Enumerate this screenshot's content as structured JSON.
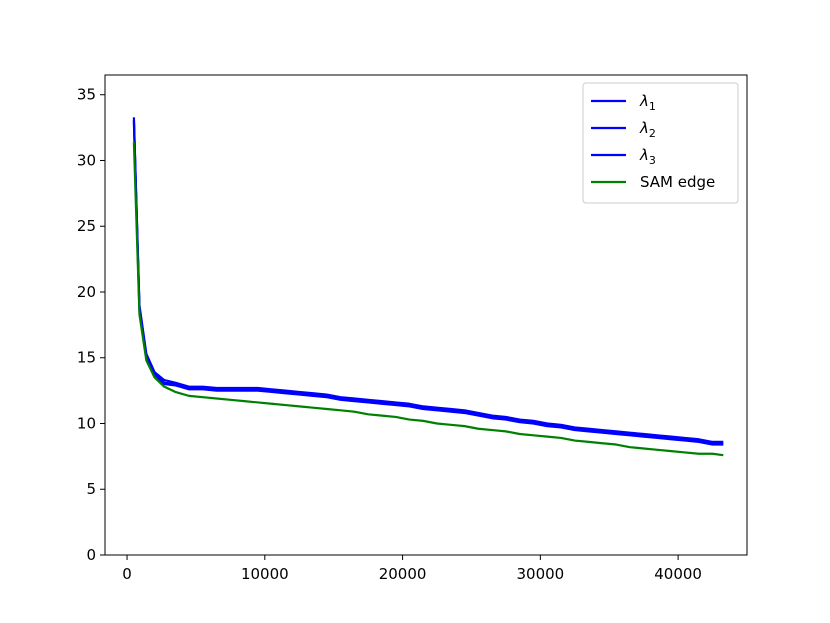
{
  "chart_data": {
    "type": "line",
    "title": "",
    "xlabel": "",
    "ylabel": "",
    "xlim": [
      -1600,
      45000
    ],
    "ylim": [
      0,
      36.5
    ],
    "x_ticks": [
      0,
      10000,
      20000,
      30000,
      40000
    ],
    "y_ticks": [
      0,
      5,
      10,
      15,
      20,
      25,
      30,
      35
    ],
    "grid": false,
    "legend_position": "top-right",
    "series": [
      {
        "name": "λ1",
        "legend_base": "λ",
        "legend_sub": "1",
        "color": "#0000ff",
        "x": [
          500,
          900,
          1400,
          2000,
          2700,
          3500,
          4500,
          5500,
          6500,
          7500,
          8500,
          9500,
          10500,
          11500,
          12500,
          13500,
          14500,
          15500,
          16500,
          17500,
          18500,
          19500,
          20500,
          21500,
          22500,
          23500,
          24500,
          25500,
          26500,
          27500,
          28500,
          29500,
          30500,
          31500,
          32500,
          33500,
          34500,
          35500,
          36500,
          37500,
          38500,
          39500,
          40500,
          41500,
          42500,
          43200
        ],
        "y": [
          33.2,
          19.0,
          15.3,
          13.9,
          13.3,
          13.1,
          12.8,
          12.8,
          12.7,
          12.7,
          12.7,
          12.7,
          12.6,
          12.5,
          12.4,
          12.3,
          12.2,
          12.0,
          11.9,
          11.8,
          11.7,
          11.6,
          11.5,
          11.3,
          11.2,
          11.1,
          11.0,
          10.8,
          10.6,
          10.5,
          10.3,
          10.2,
          10.0,
          9.9,
          9.7,
          9.6,
          9.5,
          9.4,
          9.3,
          9.2,
          9.1,
          9.0,
          8.9,
          8.8,
          8.6,
          8.6
        ]
      },
      {
        "name": "λ2",
        "legend_base": "λ",
        "legend_sub": "2",
        "color": "#0000ff",
        "x": [
          500,
          900,
          1400,
          2000,
          2700,
          3500,
          4500,
          5500,
          6500,
          7500,
          8500,
          9500,
          10500,
          11500,
          12500,
          13500,
          14500,
          15500,
          16500,
          17500,
          18500,
          19500,
          20500,
          21500,
          22500,
          23500,
          24500,
          25500,
          26500,
          27500,
          28500,
          29500,
          30500,
          31500,
          32500,
          33500,
          34500,
          35500,
          36500,
          37500,
          38500,
          39500,
          40500,
          41500,
          42500,
          43200
        ],
        "y": [
          33.0,
          18.8,
          15.1,
          13.8,
          13.1,
          13.0,
          12.7,
          12.7,
          12.6,
          12.6,
          12.6,
          12.6,
          12.5,
          12.4,
          12.3,
          12.2,
          12.1,
          11.9,
          11.8,
          11.7,
          11.6,
          11.5,
          11.4,
          11.2,
          11.1,
          11.0,
          10.9,
          10.7,
          10.5,
          10.4,
          10.2,
          10.1,
          9.9,
          9.8,
          9.6,
          9.5,
          9.4,
          9.3,
          9.2,
          9.1,
          9.0,
          8.9,
          8.8,
          8.7,
          8.5,
          8.5
        ]
      },
      {
        "name": "λ3",
        "legend_base": "λ",
        "legend_sub": "3",
        "color": "#0000ff",
        "x": [
          500,
          900,
          1400,
          2000,
          2700,
          3500,
          4500,
          5500,
          6500,
          7500,
          8500,
          9500,
          10500,
          11500,
          12500,
          13500,
          14500,
          15500,
          16500,
          17500,
          18500,
          19500,
          20500,
          21500,
          22500,
          23500,
          24500,
          25500,
          26500,
          27500,
          28500,
          29500,
          30500,
          31500,
          32500,
          33500,
          34500,
          35500,
          36500,
          37500,
          38500,
          39500,
          40500,
          41500,
          42500,
          43200
        ],
        "y": [
          32.8,
          18.6,
          15.0,
          13.7,
          13.0,
          12.9,
          12.6,
          12.6,
          12.5,
          12.5,
          12.5,
          12.5,
          12.4,
          12.3,
          12.2,
          12.1,
          12.0,
          11.8,
          11.7,
          11.6,
          11.5,
          11.4,
          11.3,
          11.1,
          11.0,
          10.9,
          10.8,
          10.6,
          10.4,
          10.3,
          10.1,
          10.0,
          9.8,
          9.7,
          9.5,
          9.4,
          9.3,
          9.2,
          9.1,
          9.0,
          8.9,
          8.8,
          8.7,
          8.6,
          8.4,
          8.4
        ]
      },
      {
        "name": "SAM edge",
        "legend_base": "SAM edge",
        "legend_sub": "",
        "color": "#008000",
        "x": [
          500,
          900,
          1400,
          2000,
          2700,
          3500,
          4500,
          5500,
          6500,
          7500,
          8500,
          9500,
          10500,
          11500,
          12500,
          13500,
          14500,
          15500,
          16500,
          17500,
          18500,
          19500,
          20500,
          21500,
          22500,
          23500,
          24500,
          25500,
          26500,
          27500,
          28500,
          29500,
          30500,
          31500,
          32500,
          33500,
          34500,
          35500,
          36500,
          37500,
          38500,
          39500,
          40500,
          41500,
          42500,
          43200
        ],
        "y": [
          31.3,
          18.3,
          14.8,
          13.5,
          12.8,
          12.4,
          12.1,
          12.0,
          11.9,
          11.8,
          11.7,
          11.6,
          11.5,
          11.4,
          11.3,
          11.2,
          11.1,
          11.0,
          10.9,
          10.7,
          10.6,
          10.5,
          10.3,
          10.2,
          10.0,
          9.9,
          9.8,
          9.6,
          9.5,
          9.4,
          9.2,
          9.1,
          9.0,
          8.9,
          8.7,
          8.6,
          8.5,
          8.4,
          8.2,
          8.1,
          8.0,
          7.9,
          7.8,
          7.7,
          7.7,
          7.6
        ]
      }
    ]
  }
}
